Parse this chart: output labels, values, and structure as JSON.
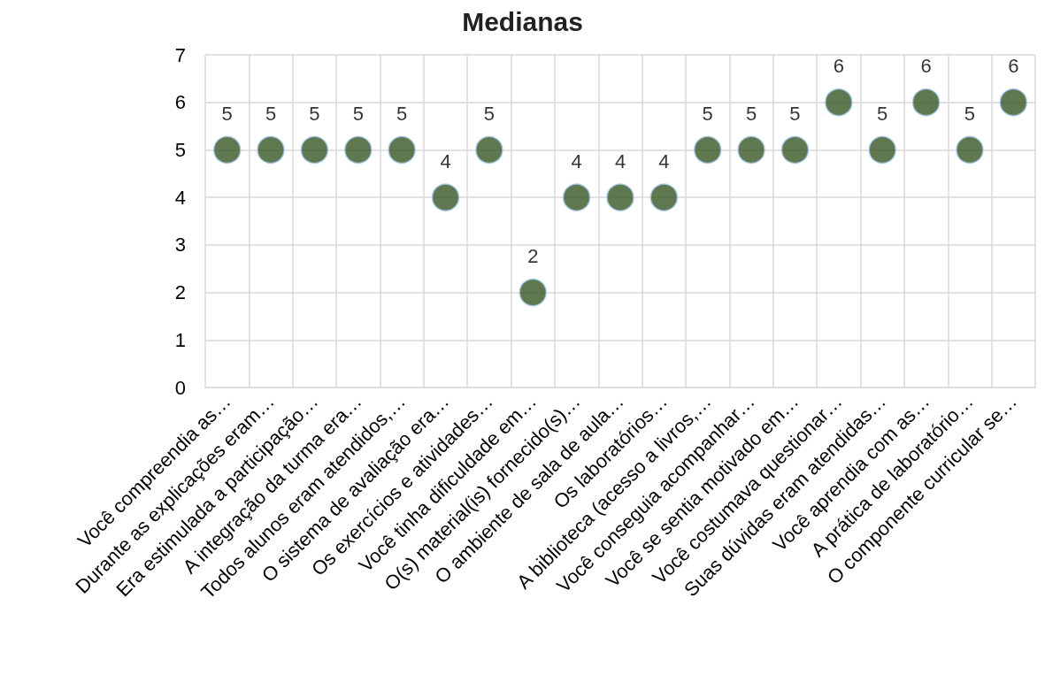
{
  "chart_data": {
    "type": "scatter",
    "title": "Medianas",
    "categories": [
      "Você compreendia as…",
      "Durante as explicações eram…",
      "Era estimulada a participação…",
      "A integração da turma era…",
      "Todos alunos eram atendidos,…",
      "O sistema de avaliação era…",
      "Os exercícios e atividades…",
      "Você tinha dificuldade em…",
      "O(s) material(is) fornecido(s)…",
      "O ambiente de sala de aula…",
      "Os laboratórios…",
      "A biblioteca (acesso a livros,…",
      "Você conseguia acompanhar…",
      "Você se sentia motivado em…",
      "Você costumava questionar…",
      "Suas dúvidas eram atendidas…",
      "Você aprendia com as…",
      "A prática de laboratório…",
      "O componente curricular se…"
    ],
    "values": [
      5,
      5,
      5,
      5,
      5,
      4,
      5,
      2,
      4,
      4,
      4,
      5,
      5,
      5,
      6,
      5,
      6,
      5,
      6
    ],
    "color": "#375623",
    "ylim": [
      0,
      7
    ],
    "yticks": [
      0,
      1,
      2,
      3,
      4,
      5,
      6,
      7
    ],
    "grid": true,
    "marker": "circle",
    "data_labels": true
  }
}
